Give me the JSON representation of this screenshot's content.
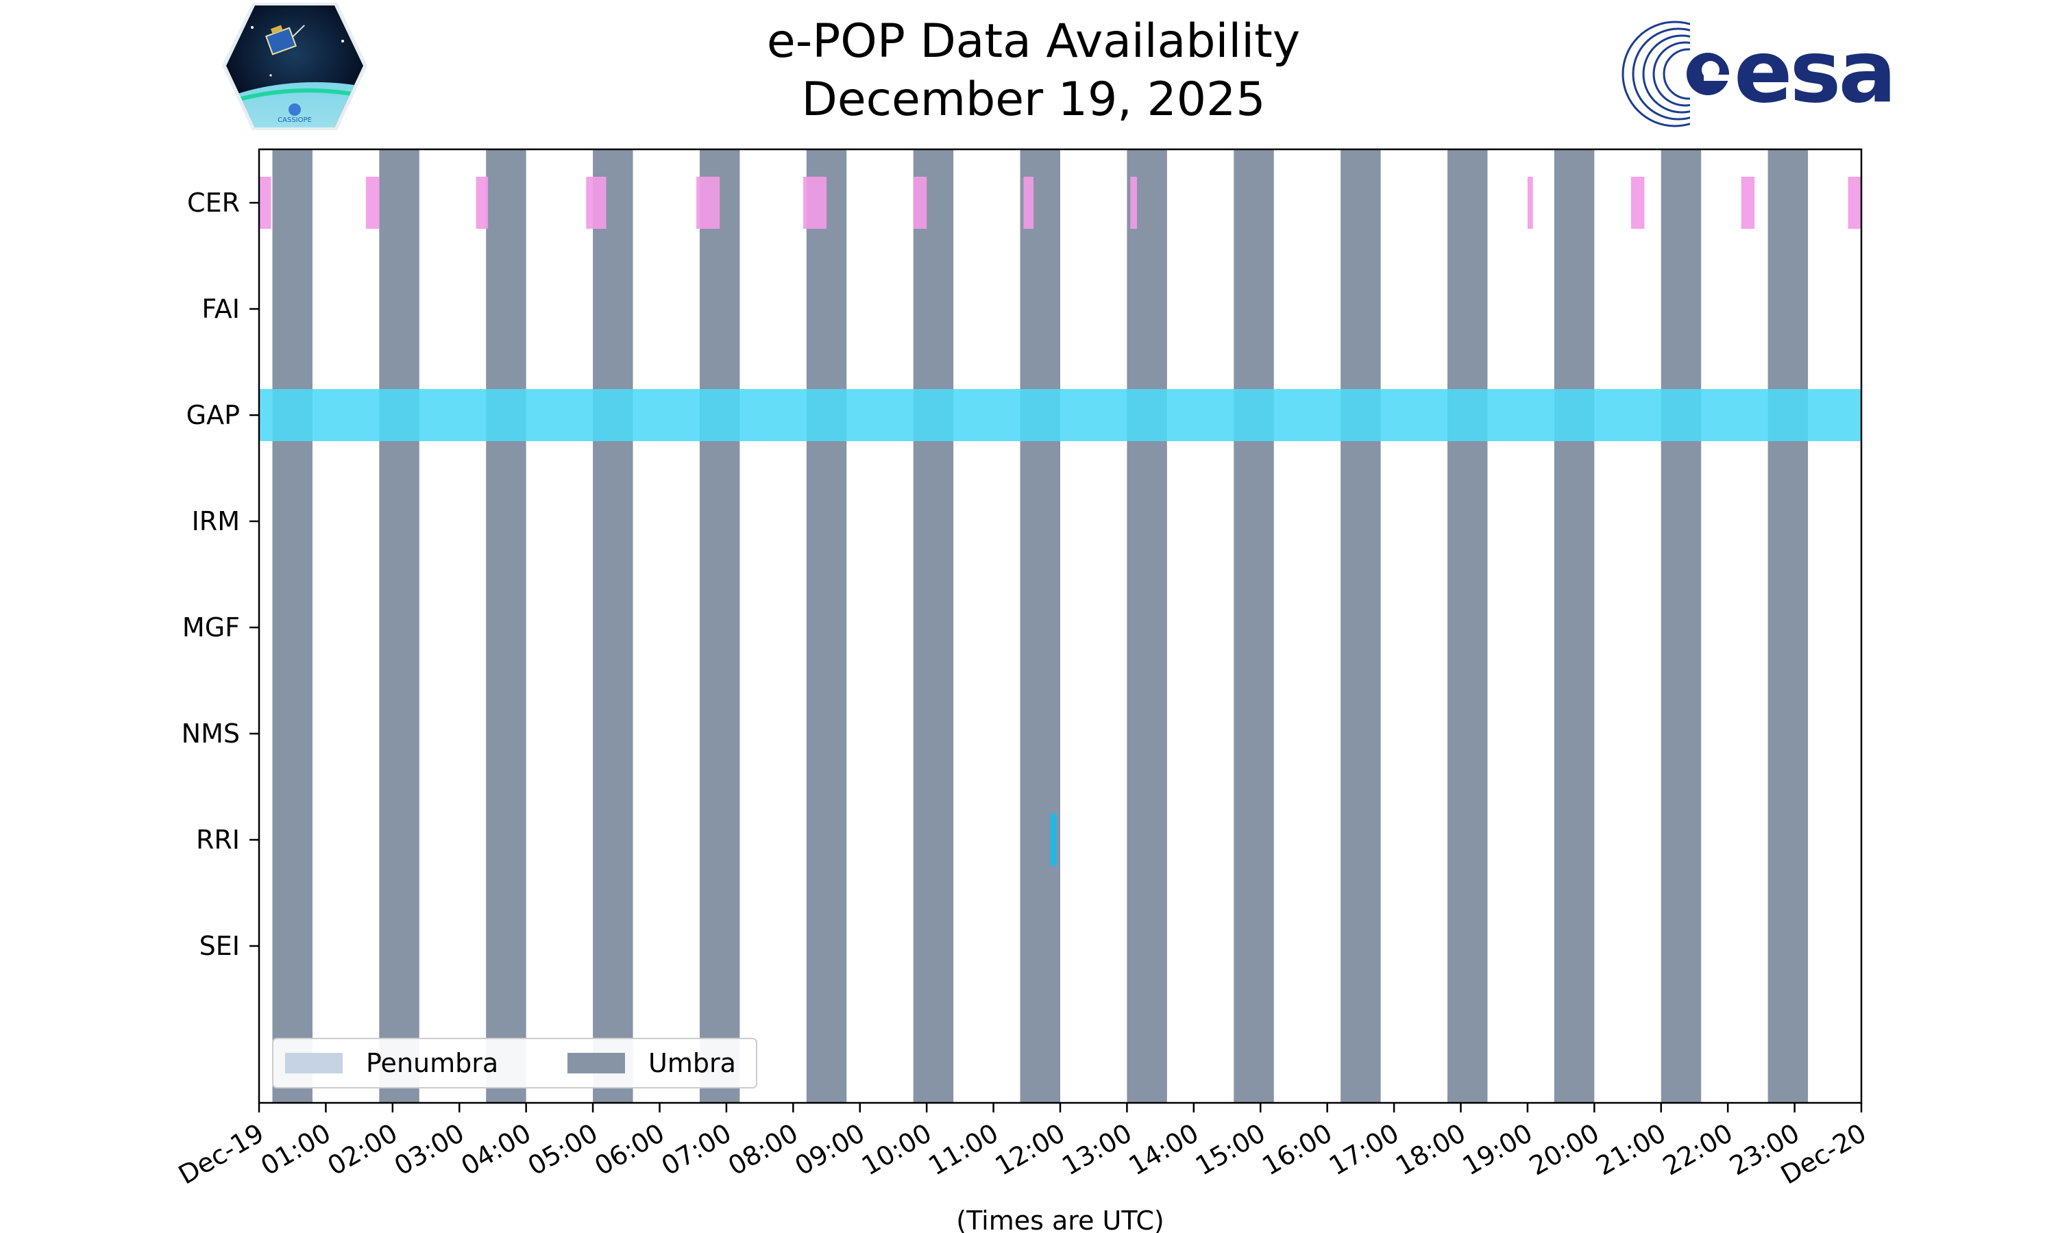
{
  "chart_data": {
    "type": "timeline",
    "title": "e-POP Data Availability",
    "subtitle": "December 19, 2025",
    "xlabel": "(Times are UTC)",
    "x_range_hours": [
      0,
      24
    ],
    "x_tick_labels": [
      "Dec-19",
      "01:00",
      "02:00",
      "03:00",
      "04:00",
      "05:00",
      "06:00",
      "07:00",
      "08:00",
      "09:00",
      "10:00",
      "11:00",
      "12:00",
      "13:00",
      "14:00",
      "15:00",
      "16:00",
      "17:00",
      "18:00",
      "19:00",
      "20:00",
      "21:00",
      "22:00",
      "23:00",
      "Dec-20"
    ],
    "instruments": [
      "CER",
      "FAI",
      "GAP",
      "IRM",
      "MGF",
      "NMS",
      "RRI",
      "SEI"
    ],
    "umbra_intervals": [
      [
        0.2,
        0.8
      ],
      [
        1.8,
        2.4
      ],
      [
        3.4,
        4.0
      ],
      [
        5.0,
        5.6
      ],
      [
        6.6,
        7.2
      ],
      [
        8.2,
        8.8
      ],
      [
        9.8,
        10.4
      ],
      [
        11.4,
        12.0
      ],
      [
        13.0,
        13.6
      ],
      [
        14.6,
        15.2
      ],
      [
        16.2,
        16.8
      ],
      [
        17.8,
        18.4
      ],
      [
        19.4,
        20.0
      ],
      [
        21.0,
        21.6
      ],
      [
        22.6,
        23.2
      ]
    ],
    "penumbra_intervals": [],
    "data_intervals": {
      "CER": [
        [
          0.0,
          0.18
        ],
        [
          1.6,
          1.8
        ],
        [
          3.25,
          3.43
        ],
        [
          4.9,
          5.2
        ],
        [
          6.55,
          6.9
        ],
        [
          8.15,
          8.5
        ],
        [
          9.8,
          10.0
        ],
        [
          11.45,
          11.6
        ],
        [
          13.05,
          13.15
        ],
        [
          19.0,
          19.08
        ],
        [
          20.55,
          20.75
        ],
        [
          22.2,
          22.4
        ],
        [
          23.8,
          24.0
        ]
      ],
      "FAI": [],
      "GAP": [
        [
          0.0,
          24.0
        ]
      ],
      "IRM": [],
      "MGF": [],
      "NMS": [],
      "RRI": [
        [
          11.85,
          11.95
        ]
      ],
      "SEI": []
    },
    "legend": {
      "position": "lower-left",
      "entries": [
        "Penumbra",
        "Umbra"
      ]
    },
    "colors": {
      "umbra": "#8694a6",
      "penumbra": "#c5d3e4",
      "CER": "#f29be6",
      "GAP": "#4fd9f7",
      "RRI": "#1fb8e8"
    },
    "logos": {
      "left_mission_patch": "CASSIOPE",
      "right_agency": "esa"
    }
  }
}
